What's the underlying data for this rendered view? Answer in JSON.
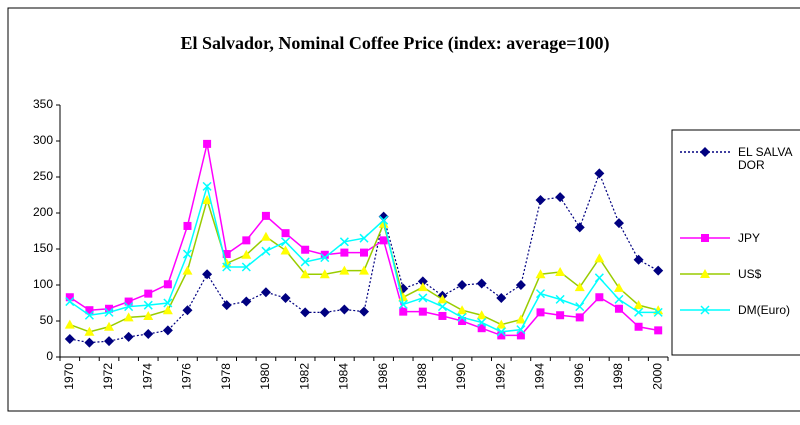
{
  "chart_data": {
    "type": "line",
    "title": "El Salvador, Nominal Coffee Price (index: average=100)",
    "categories": [
      "1970",
      null,
      "1972",
      null,
      "1974",
      null,
      "1976",
      null,
      "1978",
      null,
      "1980",
      null,
      "1982",
      null,
      "1984",
      null,
      "1986",
      null,
      "1988",
      null,
      "1990",
      null,
      "1992",
      null,
      "1994",
      null,
      "1996",
      null,
      "1998",
      null,
      "2000"
    ],
    "series": [
      {
        "name": "EL SALVADOR",
        "color": "#000080",
        "marker": "diamond",
        "marker_color": "#000080",
        "dashed": true,
        "values": [
          25,
          20,
          22,
          28,
          32,
          37,
          65,
          115,
          72,
          77,
          90,
          82,
          62,
          62,
          66,
          63,
          195,
          95,
          105,
          85,
          100,
          102,
          82,
          100,
          218,
          222,
          180,
          255,
          186,
          135,
          120
        ]
      },
      {
        "name": "JPY",
        "color": "#ff00ff",
        "marker": "square",
        "marker_color": "#ff00ff",
        "dashed": false,
        "values": [
          83,
          65,
          67,
          77,
          88,
          101,
          182,
          296,
          143,
          162,
          196,
          172,
          149,
          142,
          145,
          145,
          162,
          63,
          63,
          57,
          50,
          40,
          30,
          30,
          62,
          58,
          55,
          83,
          67,
          42,
          37
        ]
      },
      {
        "name": "US$",
        "color": "#99cc00",
        "marker": "triangle",
        "marker_color": "#ffff00",
        "dashed": false,
        "values": [
          45,
          35,
          42,
          55,
          57,
          65,
          120,
          218,
          130,
          142,
          167,
          148,
          115,
          115,
          120,
          120,
          185,
          83,
          97,
          80,
          65,
          58,
          45,
          52,
          115,
          118,
          97,
          137,
          96,
          72,
          65
        ]
      },
      {
        "name": "DM(Euro)",
        "color": "#00ffff",
        "marker": "x",
        "marker_color": "#00ffff",
        "dashed": false,
        "values": [
          77,
          58,
          62,
          70,
          72,
          75,
          143,
          237,
          125,
          125,
          147,
          160,
          132,
          138,
          160,
          165,
          190,
          73,
          82,
          70,
          55,
          48,
          35,
          38,
          88,
          80,
          70,
          110,
          80,
          62,
          62
        ]
      }
    ],
    "ylim": [
      0,
      350
    ],
    "yticks": [
      0,
      50,
      100,
      150,
      200,
      250,
      300,
      350
    ],
    "grid": false,
    "legend": "right"
  }
}
